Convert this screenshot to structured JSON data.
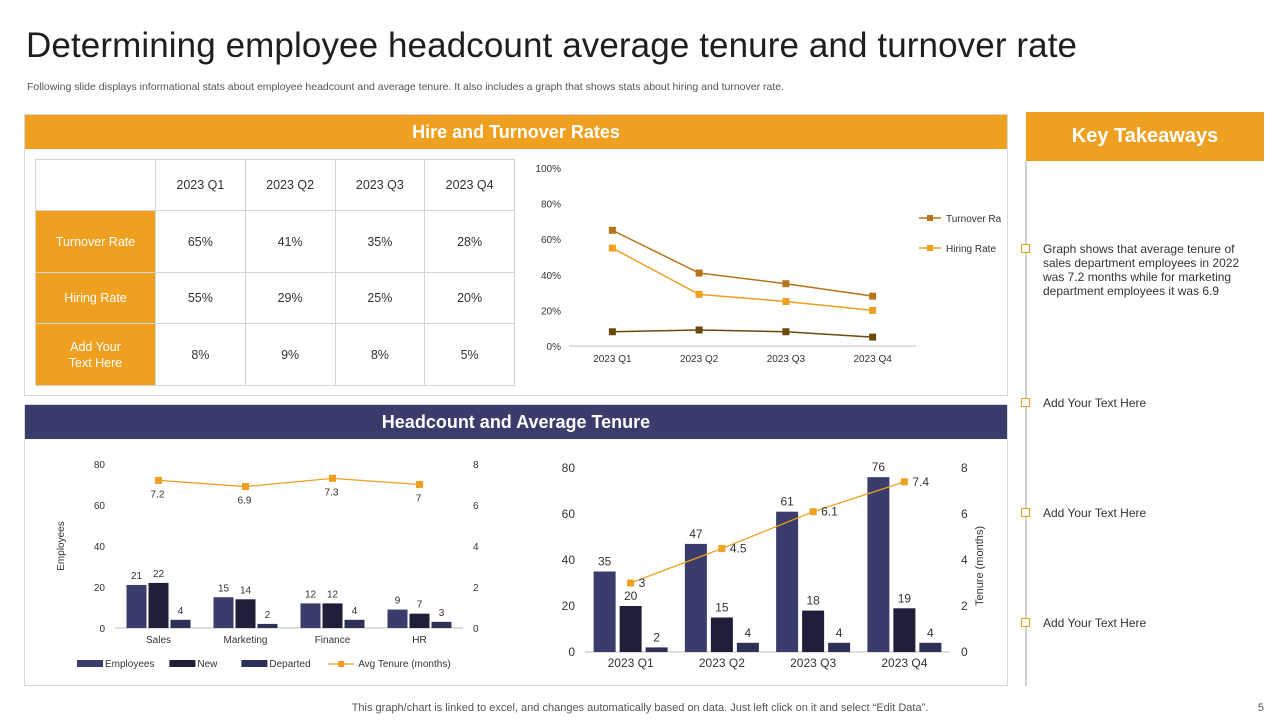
{
  "page": {
    "title": "Determining employee headcount average tenure and turnover rate",
    "subtitle": "Following slide displays informational stats about employee headcount and average tenure. It also includes a graph that shows stats about hiring and turnover rate.",
    "footer": "This graph/chart is linked to excel,  and changes automatically based on data. Just left click on it and select “Edit Data”.",
    "page_number": "5"
  },
  "colors": {
    "orange": "#EFA020",
    "navy": "#3A3C6C",
    "dark_navy": "#1F1F3A",
    "brown": "#8B5A00"
  },
  "hire_panel": {
    "title": "Hire and Turnover Rates",
    "table": {
      "headers": [
        "2023 Q1",
        "2023 Q2",
        "2023 Q3",
        "2023 Q4"
      ],
      "rows": [
        {
          "label": "Turnover  Rate",
          "values": [
            "65%",
            "41%",
            "35%",
            "28%"
          ]
        },
        {
          "label": "Hiring Rate",
          "values": [
            "55%",
            "29%",
            "25%",
            "20%"
          ]
        },
        {
          "label": "Add Your\nText Here",
          "values": [
            "8%",
            "9%",
            "8%",
            "5%"
          ]
        }
      ]
    }
  },
  "headcount_panel": {
    "title": "Headcount and Average Tenure"
  },
  "key_takeaways": {
    "title": "Key Takeaways",
    "items": [
      "Graph shows that average tenure of sales department employees in 2022 was 7.2 months while for marketing department employees it was 6.9",
      "Add Your Text Here",
      "Add Your Text Here",
      "Add Your Text Here"
    ]
  },
  "chart_data": [
    {
      "id": "rates",
      "type": "line",
      "categories": [
        "2023 Q1",
        "2023 Q2",
        "2023 Q3",
        "2023 Q4"
      ],
      "series": [
        {
          "name": "Turnover Rate",
          "values": [
            65,
            41,
            35,
            28
          ],
          "color": "#B8741A",
          "in_legend": true
        },
        {
          "name": "Hiring Rate",
          "values": [
            55,
            29,
            25,
            20
          ],
          "color": "#EFA020",
          "in_legend": true
        },
        {
          "name": "Add Your Text Here",
          "values": [
            8,
            9,
            8,
            5
          ],
          "color": "#6B4A0C",
          "in_legend": false
        }
      ],
      "ylim": [
        0,
        100
      ],
      "yticks": [
        "0%",
        "20%",
        "40%",
        "60%",
        "80%",
        "100%"
      ],
      "legend": "right",
      "grid": false
    },
    {
      "id": "dept",
      "type": "bar",
      "categories": [
        "Sales",
        "Marketing",
        "Finance",
        "HR"
      ],
      "series": [
        {
          "name": "Employees",
          "values": [
            21,
            15,
            12,
            9
          ],
          "color": "#3A3C6C"
        },
        {
          "name": "New",
          "values": [
            22,
            14,
            12,
            7
          ],
          "color": "#1F1F3A"
        },
        {
          "name": "Departed",
          "values": [
            4,
            2,
            4,
            3
          ],
          "color": "#2E3058"
        }
      ],
      "line_series": {
        "name": "Avg Tenure (months)",
        "values": [
          7.2,
          6.9,
          7.3,
          7
        ],
        "labels": [
          "7.2",
          "6.9",
          "7.3",
          "7"
        ],
        "color": "#EFA020"
      },
      "ylabel": "Employees",
      "ylim": [
        0,
        80
      ],
      "yticks": [
        "0",
        "20",
        "40",
        "60",
        "80"
      ],
      "y2lim": [
        0,
        8
      ],
      "y2ticks": [
        "0",
        "2",
        "4",
        "6",
        "8"
      ],
      "legend": "bottom"
    },
    {
      "id": "quarterly",
      "type": "bar",
      "categories": [
        "2023 Q1",
        "2023 Q2",
        "2023 Q3",
        "2023 Q4"
      ],
      "series": [
        {
          "name": "Employees",
          "values": [
            35,
            47,
            61,
            76
          ],
          "color": "#3A3C6C"
        },
        {
          "name": "New",
          "values": [
            20,
            15,
            18,
            19
          ],
          "color": "#1F1F3A"
        },
        {
          "name": "Departed",
          "values": [
            2,
            4,
            4,
            4
          ],
          "color": "#2E3058"
        }
      ],
      "line_series": {
        "name": "Tenure (months)",
        "values": [
          3,
          4.5,
          6.1,
          7.4
        ],
        "labels": [
          "3",
          "4.5",
          "6.1",
          "7.4"
        ],
        "color": "#EFA020"
      },
      "y2label": "Tenure (months)",
      "ylim": [
        0,
        80
      ],
      "yticks": [
        "0",
        "20",
        "40",
        "60",
        "80"
      ],
      "y2lim": [
        0,
        8
      ],
      "y2ticks": [
        "0",
        "2",
        "4",
        "6",
        "8"
      ]
    }
  ]
}
